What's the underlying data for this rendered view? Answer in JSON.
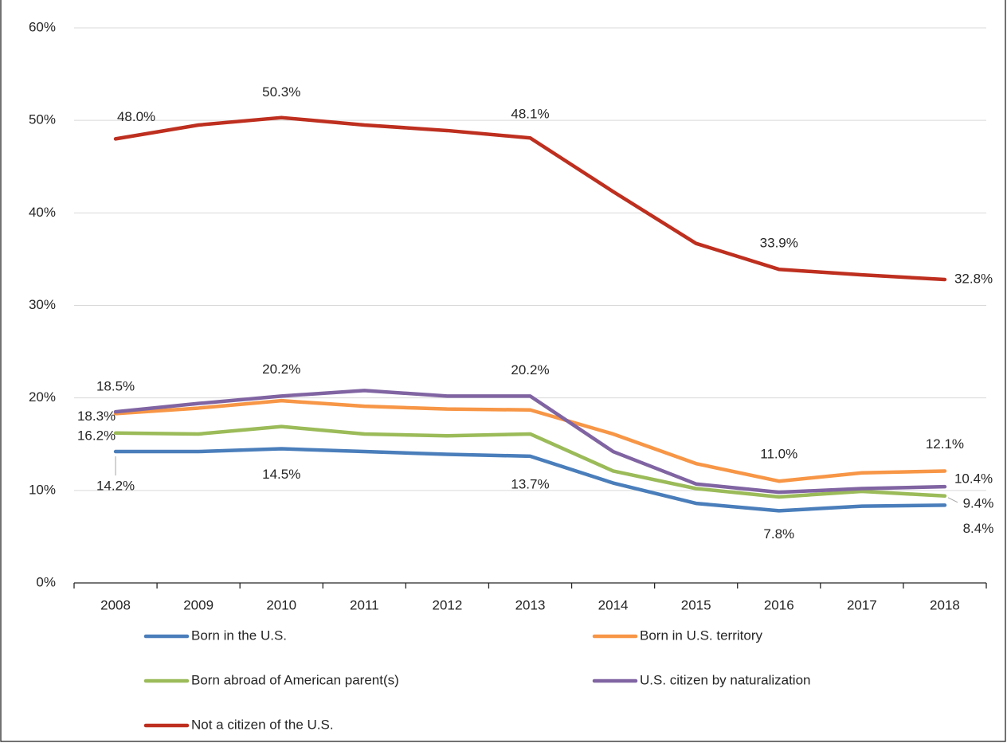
{
  "chart_data": {
    "type": "line",
    "categories": [
      "2008",
      "2009",
      "2010",
      "2011",
      "2012",
      "2013",
      "2014",
      "2015",
      "2016",
      "2017",
      "2018"
    ],
    "ylim": [
      0,
      60
    ],
    "yticks": [
      {
        "value": 0,
        "label": "0%"
      },
      {
        "value": 10,
        "label": "10%"
      },
      {
        "value": 20,
        "label": "20%"
      },
      {
        "value": 30,
        "label": "30%"
      },
      {
        "value": 40,
        "label": "40%"
      },
      {
        "value": 50,
        "label": "50%"
      },
      {
        "value": 60,
        "label": "60%"
      }
    ],
    "grid": true,
    "legend": "bottom",
    "series": [
      {
        "name": "Born in the U.S.",
        "color": "#4a7ebb",
        "values": [
          14.2,
          14.2,
          14.5,
          14.2,
          13.9,
          13.7,
          10.8,
          8.6,
          7.8,
          8.3,
          8.4
        ],
        "value_labels": [
          "14.2%",
          null,
          "14.5%",
          null,
          null,
          "13.7%",
          null,
          null,
          "7.8%",
          null,
          "8.4%"
        ]
      },
      {
        "name": "Born in U.S. territory",
        "color": "#f79646",
        "values": [
          18.3,
          18.9,
          19.7,
          19.1,
          18.8,
          18.7,
          16.1,
          12.9,
          11.0,
          11.9,
          12.1
        ],
        "value_labels": [
          "18.3%",
          null,
          null,
          null,
          null,
          null,
          null,
          null,
          "11.0%",
          null,
          "12.1%"
        ]
      },
      {
        "name": "Born abroad of American parent(s)",
        "color": "#9bbb59",
        "values": [
          16.2,
          16.1,
          16.9,
          16.1,
          15.9,
          16.1,
          12.1,
          10.2,
          9.3,
          9.9,
          9.4
        ],
        "value_labels": [
          "16.2%",
          null,
          null,
          null,
          null,
          null,
          null,
          null,
          null,
          null,
          "9.4%"
        ]
      },
      {
        "name": "U.S. citizen by naturalization",
        "color": "#8064a2",
        "values": [
          18.5,
          19.4,
          20.2,
          20.8,
          20.2,
          20.2,
          14.2,
          10.7,
          9.8,
          10.2,
          10.4
        ],
        "value_labels": [
          "18.5%",
          null,
          "20.2%",
          null,
          null,
          "20.2%",
          null,
          null,
          null,
          null,
          "10.4%"
        ]
      },
      {
        "name": "Not a citizen of the U.S.",
        "color": "#be2f1f",
        "values": [
          48.0,
          49.5,
          50.3,
          49.5,
          48.9,
          48.1,
          42.3,
          36.7,
          33.9,
          33.3,
          32.8
        ],
        "value_labels": [
          "48.0%",
          null,
          "50.3%",
          null,
          null,
          "48.1%",
          null,
          null,
          "33.9%",
          null,
          "32.8%"
        ]
      }
    ]
  }
}
